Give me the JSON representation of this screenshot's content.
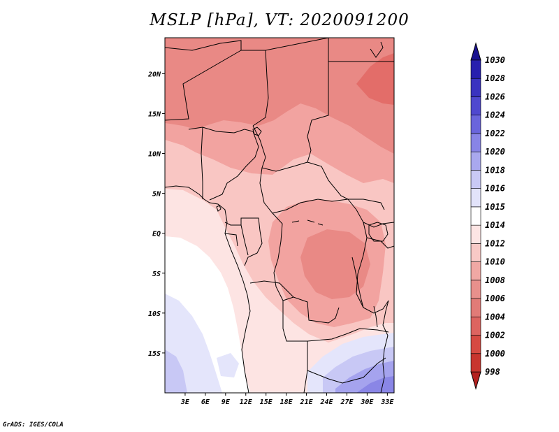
{
  "title": "MSLP [hPa], VT: 2020091200",
  "footer": "GrADS: IGES/COLA",
  "map": {
    "lon_range": [
      0,
      34
    ],
    "lat_range": [
      -20,
      24.5
    ],
    "x_ticks": [
      {
        "value": 3,
        "label": "3E"
      },
      {
        "value": 6,
        "label": "6E"
      },
      {
        "value": 9,
        "label": "9E"
      },
      {
        "value": 12,
        "label": "12E"
      },
      {
        "value": 15,
        "label": "15E"
      },
      {
        "value": 18,
        "label": "18E"
      },
      {
        "value": 21,
        "label": "21E"
      },
      {
        "value": 24,
        "label": "24E"
      },
      {
        "value": 27,
        "label": "27E"
      },
      {
        "value": 30,
        "label": "30E"
      },
      {
        "value": 33,
        "label": "33E"
      }
    ],
    "y_ticks": [
      {
        "value": 20,
        "label": "20N"
      },
      {
        "value": 15,
        "label": "15N"
      },
      {
        "value": 10,
        "label": "10N"
      },
      {
        "value": 5,
        "label": "5N"
      },
      {
        "value": 0,
        "label": "EQ"
      },
      {
        "value": -5,
        "label": "5S"
      },
      {
        "value": -10,
        "label": "10S"
      },
      {
        "value": -15,
        "label": "15S"
      }
    ]
  },
  "colorbar": {
    "labels": [
      "998",
      "1000",
      "1002",
      "1004",
      "1006",
      "1008",
      "1010",
      "1012",
      "1014",
      "1015",
      "1016",
      "1018",
      "1020",
      "1022",
      "1024",
      "1026",
      "1028",
      "1030"
    ],
    "colors": [
      "#b4211f",
      "#c8352e",
      "#d64a42",
      "#dd6460",
      "#e17b77",
      "#e8908c",
      "#f0a8a4",
      "#f8c9c6",
      "#fde5e4",
      "#ffffff",
      "#e2e3fa",
      "#c9c9f5",
      "#a9a8ee",
      "#8884e6",
      "#6a65dc",
      "#4f48cf",
      "#3a33c0",
      "#271fae",
      "#1a1290"
    ]
  },
  "field_colors": {
    "p1006": "#e36d69",
    "p1008": "#e98985",
    "p1010": "#f2a3a0",
    "p1012": "#f9c6c3",
    "p1014": "#fde4e3",
    "p1015": "#ffffff",
    "p1016": "#e4e5fb",
    "p1018": "#c8c8f5",
    "p1020": "#a5a3ee",
    "p1022": "#8a86e6"
  }
}
